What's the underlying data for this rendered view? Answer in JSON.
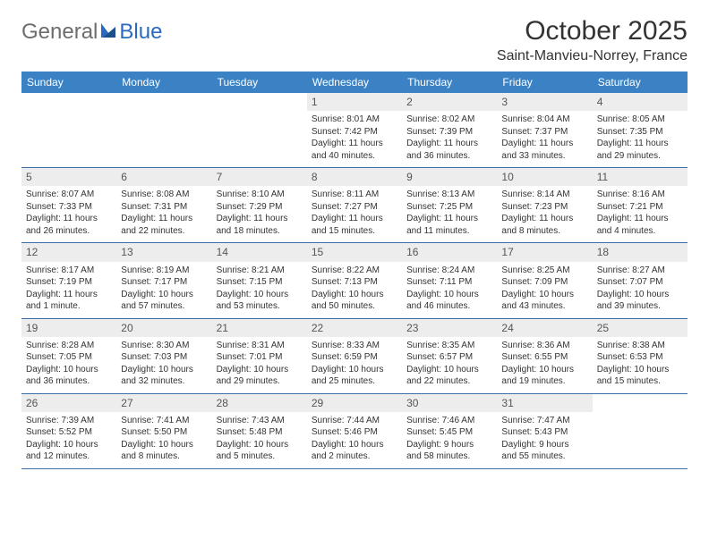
{
  "brand": {
    "name1": "General",
    "name2": "Blue"
  },
  "title": "October 2025",
  "location": "Saint-Manvieu-Norrey, France",
  "colors": {
    "header_bg": "#3a82c4",
    "row_border": "#3a6fa5",
    "daynum_bg": "#ededed",
    "logo_gray": "#6d6d6d",
    "logo_blue": "#2a6bbf"
  },
  "weekdays": [
    "Sunday",
    "Monday",
    "Tuesday",
    "Wednesday",
    "Thursday",
    "Friday",
    "Saturday"
  ],
  "weeks": [
    [
      {
        "n": "",
        "empty": true
      },
      {
        "n": "",
        "empty": true
      },
      {
        "n": "",
        "empty": true
      },
      {
        "n": "1",
        "sr": "Sunrise: 8:01 AM",
        "ss": "Sunset: 7:42 PM",
        "d1": "Daylight: 11 hours",
        "d2": "and 40 minutes."
      },
      {
        "n": "2",
        "sr": "Sunrise: 8:02 AM",
        "ss": "Sunset: 7:39 PM",
        "d1": "Daylight: 11 hours",
        "d2": "and 36 minutes."
      },
      {
        "n": "3",
        "sr": "Sunrise: 8:04 AM",
        "ss": "Sunset: 7:37 PM",
        "d1": "Daylight: 11 hours",
        "d2": "and 33 minutes."
      },
      {
        "n": "4",
        "sr": "Sunrise: 8:05 AM",
        "ss": "Sunset: 7:35 PM",
        "d1": "Daylight: 11 hours",
        "d2": "and 29 minutes."
      }
    ],
    [
      {
        "n": "5",
        "sr": "Sunrise: 8:07 AM",
        "ss": "Sunset: 7:33 PM",
        "d1": "Daylight: 11 hours",
        "d2": "and 26 minutes."
      },
      {
        "n": "6",
        "sr": "Sunrise: 8:08 AM",
        "ss": "Sunset: 7:31 PM",
        "d1": "Daylight: 11 hours",
        "d2": "and 22 minutes."
      },
      {
        "n": "7",
        "sr": "Sunrise: 8:10 AM",
        "ss": "Sunset: 7:29 PM",
        "d1": "Daylight: 11 hours",
        "d2": "and 18 minutes."
      },
      {
        "n": "8",
        "sr": "Sunrise: 8:11 AM",
        "ss": "Sunset: 7:27 PM",
        "d1": "Daylight: 11 hours",
        "d2": "and 15 minutes."
      },
      {
        "n": "9",
        "sr": "Sunrise: 8:13 AM",
        "ss": "Sunset: 7:25 PM",
        "d1": "Daylight: 11 hours",
        "d2": "and 11 minutes."
      },
      {
        "n": "10",
        "sr": "Sunrise: 8:14 AM",
        "ss": "Sunset: 7:23 PM",
        "d1": "Daylight: 11 hours",
        "d2": "and 8 minutes."
      },
      {
        "n": "11",
        "sr": "Sunrise: 8:16 AM",
        "ss": "Sunset: 7:21 PM",
        "d1": "Daylight: 11 hours",
        "d2": "and 4 minutes."
      }
    ],
    [
      {
        "n": "12",
        "sr": "Sunrise: 8:17 AM",
        "ss": "Sunset: 7:19 PM",
        "d1": "Daylight: 11 hours",
        "d2": "and 1 minute."
      },
      {
        "n": "13",
        "sr": "Sunrise: 8:19 AM",
        "ss": "Sunset: 7:17 PM",
        "d1": "Daylight: 10 hours",
        "d2": "and 57 minutes."
      },
      {
        "n": "14",
        "sr": "Sunrise: 8:21 AM",
        "ss": "Sunset: 7:15 PM",
        "d1": "Daylight: 10 hours",
        "d2": "and 53 minutes."
      },
      {
        "n": "15",
        "sr": "Sunrise: 8:22 AM",
        "ss": "Sunset: 7:13 PM",
        "d1": "Daylight: 10 hours",
        "d2": "and 50 minutes."
      },
      {
        "n": "16",
        "sr": "Sunrise: 8:24 AM",
        "ss": "Sunset: 7:11 PM",
        "d1": "Daylight: 10 hours",
        "d2": "and 46 minutes."
      },
      {
        "n": "17",
        "sr": "Sunrise: 8:25 AM",
        "ss": "Sunset: 7:09 PM",
        "d1": "Daylight: 10 hours",
        "d2": "and 43 minutes."
      },
      {
        "n": "18",
        "sr": "Sunrise: 8:27 AM",
        "ss": "Sunset: 7:07 PM",
        "d1": "Daylight: 10 hours",
        "d2": "and 39 minutes."
      }
    ],
    [
      {
        "n": "19",
        "sr": "Sunrise: 8:28 AM",
        "ss": "Sunset: 7:05 PM",
        "d1": "Daylight: 10 hours",
        "d2": "and 36 minutes."
      },
      {
        "n": "20",
        "sr": "Sunrise: 8:30 AM",
        "ss": "Sunset: 7:03 PM",
        "d1": "Daylight: 10 hours",
        "d2": "and 32 minutes."
      },
      {
        "n": "21",
        "sr": "Sunrise: 8:31 AM",
        "ss": "Sunset: 7:01 PM",
        "d1": "Daylight: 10 hours",
        "d2": "and 29 minutes."
      },
      {
        "n": "22",
        "sr": "Sunrise: 8:33 AM",
        "ss": "Sunset: 6:59 PM",
        "d1": "Daylight: 10 hours",
        "d2": "and 25 minutes."
      },
      {
        "n": "23",
        "sr": "Sunrise: 8:35 AM",
        "ss": "Sunset: 6:57 PM",
        "d1": "Daylight: 10 hours",
        "d2": "and 22 minutes."
      },
      {
        "n": "24",
        "sr": "Sunrise: 8:36 AM",
        "ss": "Sunset: 6:55 PM",
        "d1": "Daylight: 10 hours",
        "d2": "and 19 minutes."
      },
      {
        "n": "25",
        "sr": "Sunrise: 8:38 AM",
        "ss": "Sunset: 6:53 PM",
        "d1": "Daylight: 10 hours",
        "d2": "and 15 minutes."
      }
    ],
    [
      {
        "n": "26",
        "sr": "Sunrise: 7:39 AM",
        "ss": "Sunset: 5:52 PM",
        "d1": "Daylight: 10 hours",
        "d2": "and 12 minutes."
      },
      {
        "n": "27",
        "sr": "Sunrise: 7:41 AM",
        "ss": "Sunset: 5:50 PM",
        "d1": "Daylight: 10 hours",
        "d2": "and 8 minutes."
      },
      {
        "n": "28",
        "sr": "Sunrise: 7:43 AM",
        "ss": "Sunset: 5:48 PM",
        "d1": "Daylight: 10 hours",
        "d2": "and 5 minutes."
      },
      {
        "n": "29",
        "sr": "Sunrise: 7:44 AM",
        "ss": "Sunset: 5:46 PM",
        "d1": "Daylight: 10 hours",
        "d2": "and 2 minutes."
      },
      {
        "n": "30",
        "sr": "Sunrise: 7:46 AM",
        "ss": "Sunset: 5:45 PM",
        "d1": "Daylight: 9 hours",
        "d2": "and 58 minutes."
      },
      {
        "n": "31",
        "sr": "Sunrise: 7:47 AM",
        "ss": "Sunset: 5:43 PM",
        "d1": "Daylight: 9 hours",
        "d2": "and 55 minutes."
      },
      {
        "n": "",
        "empty": true
      }
    ]
  ]
}
